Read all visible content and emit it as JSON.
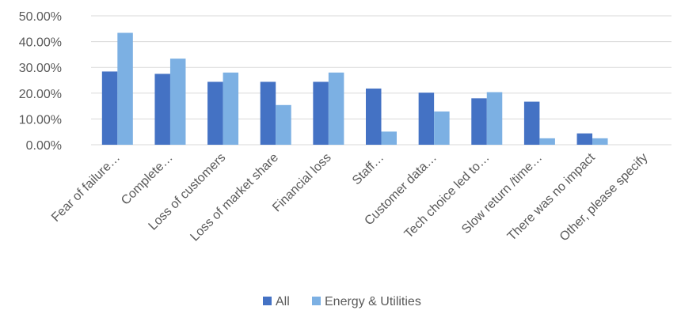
{
  "chart_data": {
    "type": "bar",
    "title": "",
    "xlabel": "",
    "ylabel": "",
    "ylim": [
      0,
      50
    ],
    "y_ticks": [
      "0.00%",
      "10.00%",
      "20.00%",
      "30.00%",
      "40.00%",
      "50.00%"
    ],
    "grid": true,
    "legend_position": "bottom",
    "categories": [
      "Fear of failure…",
      "Complete…",
      "Loss of customers",
      "Loss of market share",
      "Financial loss",
      "Staff…",
      "Customer data…",
      "Tech choice led to…",
      "Slow return /time…",
      "There was no impact",
      "Other, please specify"
    ],
    "series": [
      {
        "name": "All",
        "color": "#4472c4",
        "values": [
          28.4,
          27.5,
          24.4,
          24.4,
          24.4,
          21.8,
          20.2,
          18.0,
          16.7,
          4.4,
          0
        ]
      },
      {
        "name": "Energy & Utilities",
        "color": "#7cb0e3",
        "values": [
          43.4,
          33.4,
          28.0,
          15.4,
          28.0,
          5.1,
          12.9,
          20.4,
          2.5,
          2.5,
          0
        ]
      }
    ]
  }
}
